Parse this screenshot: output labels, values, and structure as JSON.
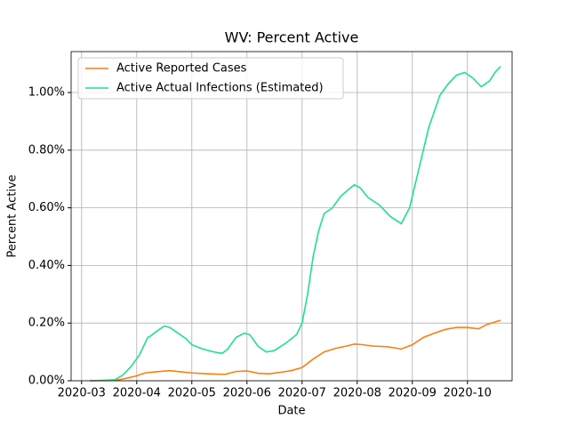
{
  "chart_data": {
    "type": "line",
    "title": "WV: Percent Active",
    "x_label": "Date",
    "y_label": "Percent Active",
    "xlim": [
      2.81,
      10.81
    ],
    "xticks": [
      {
        "value": 3,
        "label": "2020-03"
      },
      {
        "value": 4,
        "label": "2020-04"
      },
      {
        "value": 5,
        "label": "2020-05"
      },
      {
        "value": 6,
        "label": "2020-06"
      },
      {
        "value": 7,
        "label": "2020-07"
      },
      {
        "value": 8,
        "label": "2020-08"
      },
      {
        "value": 9,
        "label": "2020-09"
      },
      {
        "value": 10,
        "label": "2020-10"
      }
    ],
    "ylim": [
      0,
      1.142
    ],
    "yticks": [
      {
        "value": 0,
        "label": "0.00%"
      },
      {
        "value": 0.2,
        "label": "0.20%"
      },
      {
        "value": 0.4,
        "label": "0.40%"
      },
      {
        "value": 0.6,
        "label": "0.60%"
      },
      {
        "value": 0.8,
        "label": "0.80%"
      },
      {
        "value": 1.0,
        "label": "1.00%"
      }
    ],
    "grid": true,
    "legend": "upper left",
    "series": [
      {
        "name": "Active Reported Cases",
        "color": "#ff7f0e",
        "x": [
          3.15,
          3.6,
          3.8,
          4.0,
          4.15,
          4.35,
          4.6,
          4.8,
          5.0,
          5.3,
          5.6,
          5.8,
          6.0,
          6.2,
          6.4,
          6.6,
          6.8,
          7.0,
          7.2,
          7.4,
          7.6,
          7.8,
          7.95,
          8.1,
          8.3,
          8.55,
          8.8,
          9.0,
          9.2,
          9.4,
          9.6,
          9.8,
          10.0,
          10.2,
          10.35,
          10.6
        ],
        "values": [
          0,
          0.001,
          0.008,
          0.017,
          0.027,
          0.031,
          0.035,
          0.031,
          0.027,
          0.024,
          0.022,
          0.032,
          0.034,
          0.026,
          0.024,
          0.029,
          0.035,
          0.046,
          0.075,
          0.1,
          0.112,
          0.12,
          0.127,
          0.125,
          0.12,
          0.118,
          0.11,
          0.125,
          0.15,
          0.165,
          0.178,
          0.185,
          0.185,
          0.18,
          0.195,
          0.21
        ]
      },
      {
        "name": "Active Actual Infections (Estimated)",
        "color": "#1de28f",
        "x": [
          3.15,
          3.6,
          3.75,
          3.9,
          4.05,
          4.2,
          4.25,
          4.35,
          4.5,
          4.6,
          4.75,
          4.9,
          5.0,
          5.2,
          5.4,
          5.55,
          5.65,
          5.8,
          5.95,
          6.05,
          6.2,
          6.35,
          6.5,
          6.7,
          6.9,
          7.0,
          7.1,
          7.2,
          7.3,
          7.4,
          7.55,
          7.7,
          7.85,
          7.95,
          8.05,
          8.2,
          8.4,
          8.6,
          8.8,
          8.95,
          9.1,
          9.3,
          9.5,
          9.65,
          9.8,
          9.95,
          10.1,
          10.25,
          10.4,
          10.5,
          10.6
        ],
        "values": [
          0,
          0.003,
          0.02,
          0.05,
          0.09,
          0.15,
          0.155,
          0.17,
          0.19,
          0.185,
          0.165,
          0.145,
          0.125,
          0.11,
          0.1,
          0.095,
          0.11,
          0.15,
          0.165,
          0.16,
          0.12,
          0.1,
          0.105,
          0.13,
          0.16,
          0.2,
          0.3,
          0.43,
          0.52,
          0.58,
          0.6,
          0.64,
          0.665,
          0.68,
          0.67,
          0.635,
          0.61,
          0.57,
          0.545,
          0.6,
          0.72,
          0.88,
          0.99,
          1.03,
          1.06,
          1.07,
          1.05,
          1.02,
          1.04,
          1.07,
          1.09
        ]
      }
    ]
  }
}
